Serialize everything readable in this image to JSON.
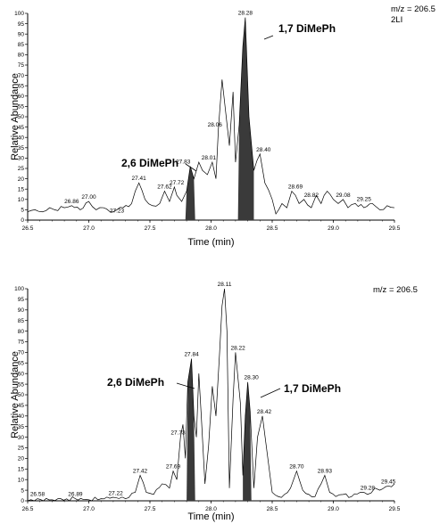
{
  "chart_data": [
    {
      "type": "line",
      "title": "",
      "xlabel": "Time (min)",
      "ylabel": "Relative Abundance",
      "xlim": [
        26.5,
        29.5
      ],
      "ylim": [
        0,
        100
      ],
      "xticks": [
        "26.5",
        "27.0",
        "27.5",
        "28.0",
        "28.5",
        "29.0",
        "29.5"
      ],
      "yticks": [
        "0",
        "5",
        "10",
        "15",
        "20",
        "25",
        "30",
        "35",
        "40",
        "45",
        "50",
        "55",
        "60",
        "65",
        "70",
        "75",
        "80",
        "85",
        "90",
        "95",
        "100"
      ],
      "header": [
        "m/z = 206.5",
        "2LI"
      ],
      "series": [
        {
          "x": [
            26.5,
            26.56,
            26.62,
            26.68,
            26.72,
            26.8,
            26.86,
            26.93,
            27.0,
            27.06,
            27.12,
            27.2,
            27.23,
            27.28,
            27.35,
            27.41,
            27.46,
            27.52,
            27.58,
            27.62,
            27.66,
            27.7,
            27.72,
            27.76,
            27.8,
            27.83,
            27.86,
            27.9,
            27.93,
            27.97,
            28.01,
            28.04,
            28.06,
            28.09,
            28.12,
            28.15,
            28.18,
            28.2,
            28.23,
            28.26,
            28.28,
            28.31,
            28.35,
            28.4,
            28.44,
            28.5,
            28.53,
            28.58,
            28.62,
            28.66,
            28.69,
            28.72,
            28.76,
            28.82,
            28.86,
            28.9,
            28.95,
            29.0,
            29.04,
            29.08,
            29.12,
            29.18,
            29.25,
            29.32,
            29.38,
            29.44,
            29.5
          ],
          "y": [
            4,
            5,
            4,
            6,
            5,
            6,
            7,
            5,
            9,
            5,
            6,
            4,
            5,
            6,
            8,
            18,
            10,
            7,
            8,
            14,
            9,
            16,
            12,
            9,
            14,
            26,
            20,
            28,
            24,
            22,
            28,
            20,
            44,
            68,
            52,
            36,
            62,
            28,
            46,
            84,
            98,
            50,
            24,
            32,
            18,
            10,
            3,
            8,
            6,
            14,
            12,
            8,
            10,
            6,
            12,
            8,
            14,
            10,
            8,
            10,
            6,
            8,
            6,
            8,
            5,
            7,
            6
          ],
          "shaded_peaks": [
            [
              27.79,
              27.87
            ],
            [
              28.22,
              28.35
            ]
          ]
        }
      ],
      "peak_labels": [
        {
          "x": 26.86,
          "label": "26.86"
        },
        {
          "x": 27.0,
          "label": "27.00"
        },
        {
          "x": 27.41,
          "label": "27.41"
        },
        {
          "x": 27.23,
          "label": "27.23"
        },
        {
          "x": 27.62,
          "label": "27.62"
        },
        {
          "x": 27.72,
          "label": "27.72"
        },
        {
          "x": 27.83,
          "label": "27.83"
        },
        {
          "x": 28.01,
          "label": "28.01"
        },
        {
          "x": 28.06,
          "label": "28.06"
        },
        {
          "x": 28.28,
          "label": "28.28"
        },
        {
          "x": 28.4,
          "label": "28.40"
        },
        {
          "x": 28.69,
          "label": "28.69"
        },
        {
          "x": 28.82,
          "label": "28.82"
        },
        {
          "x": 29.08,
          "label": "29.08"
        },
        {
          "x": 29.25,
          "label": "29.25"
        }
      ],
      "annotations": [
        {
          "text": "1,7 DiMePh",
          "x": 28.28
        },
        {
          "text": "2,6 DiMePh",
          "x": 27.83
        }
      ]
    },
    {
      "type": "line",
      "title": "",
      "xlabel": "Time (min)",
      "ylabel": "Relative Abundance",
      "xlim": [
        26.5,
        29.5
      ],
      "ylim": [
        0,
        100
      ],
      "xticks": [
        "26.5",
        "27.0",
        "27.5",
        "28.0",
        "28.5",
        "29.0",
        "29.5"
      ],
      "yticks": [
        "0",
        "5",
        "10",
        "15",
        "20",
        "25",
        "30",
        "35",
        "40",
        "45",
        "50",
        "55",
        "60",
        "65",
        "70",
        "75",
        "80",
        "85",
        "90",
        "95",
        "100"
      ],
      "header": [
        "m/z = 206.5"
      ],
      "series": [
        {
          "x": [
            26.5,
            26.58,
            26.7,
            26.89,
            27.0,
            27.1,
            27.22,
            27.3,
            27.38,
            27.42,
            27.47,
            27.53,
            27.6,
            27.66,
            27.69,
            27.72,
            27.75,
            27.77,
            27.79,
            27.81,
            27.84,
            27.86,
            27.88,
            27.9,
            27.92,
            27.95,
            27.98,
            28.01,
            28.04,
            28.07,
            28.09,
            28.11,
            28.13,
            28.15,
            28.18,
            28.2,
            28.22,
            28.24,
            28.26,
            28.28,
            28.3,
            28.32,
            28.35,
            28.38,
            28.42,
            28.46,
            28.5,
            28.55,
            28.6,
            28.65,
            28.7,
            28.75,
            28.8,
            28.85,
            28.9,
            28.93,
            28.97,
            29.02,
            29.08,
            29.15,
            29.22,
            29.28,
            29.34,
            29.38,
            29.45,
            29.5
          ],
          "y": [
            0,
            1,
            0.5,
            1,
            0.5,
            1,
            1.5,
            1,
            4,
            12,
            4,
            3,
            8,
            6,
            14,
            10,
            30,
            36,
            20,
            56,
            67,
            40,
            30,
            60,
            40,
            8,
            26,
            54,
            40,
            70,
            92,
            100,
            80,
            6,
            48,
            70,
            58,
            46,
            12,
            40,
            56,
            42,
            6,
            30,
            40,
            22,
            4,
            2,
            3,
            6,
            14,
            5,
            3,
            2,
            8,
            12,
            4,
            2,
            3,
            2,
            4,
            3,
            6,
            5,
            7,
            8
          ],
          "shaded_peaks": [
            [
              27.8,
              27.87
            ],
            [
              28.26,
              28.33
            ]
          ]
        }
      ],
      "peak_labels": [
        {
          "x": 26.58,
          "label": "26.58"
        },
        {
          "x": 26.89,
          "label": "26.89"
        },
        {
          "x": 27.22,
          "label": "27.22"
        },
        {
          "x": 27.42,
          "label": "27.42"
        },
        {
          "x": 27.69,
          "label": "27.69"
        },
        {
          "x": 27.73,
          "label": "27.73"
        },
        {
          "x": 27.84,
          "label": "27.84"
        },
        {
          "x": 28.11,
          "label": "28.11"
        },
        {
          "x": 28.22,
          "label": "28.22"
        },
        {
          "x": 28.3,
          "label": "28.30"
        },
        {
          "x": 28.42,
          "label": "28.42"
        },
        {
          "x": 28.7,
          "label": "28.70"
        },
        {
          "x": 28.93,
          "label": "28.93"
        },
        {
          "x": 29.28,
          "label": "29.28"
        },
        {
          "x": 29.45,
          "label": "29.45"
        }
      ],
      "annotations": [
        {
          "text": "2,6 DiMePh",
          "x": 27.84
        },
        {
          "text": "1,7 DiMePh",
          "x": 28.3
        }
      ]
    }
  ]
}
